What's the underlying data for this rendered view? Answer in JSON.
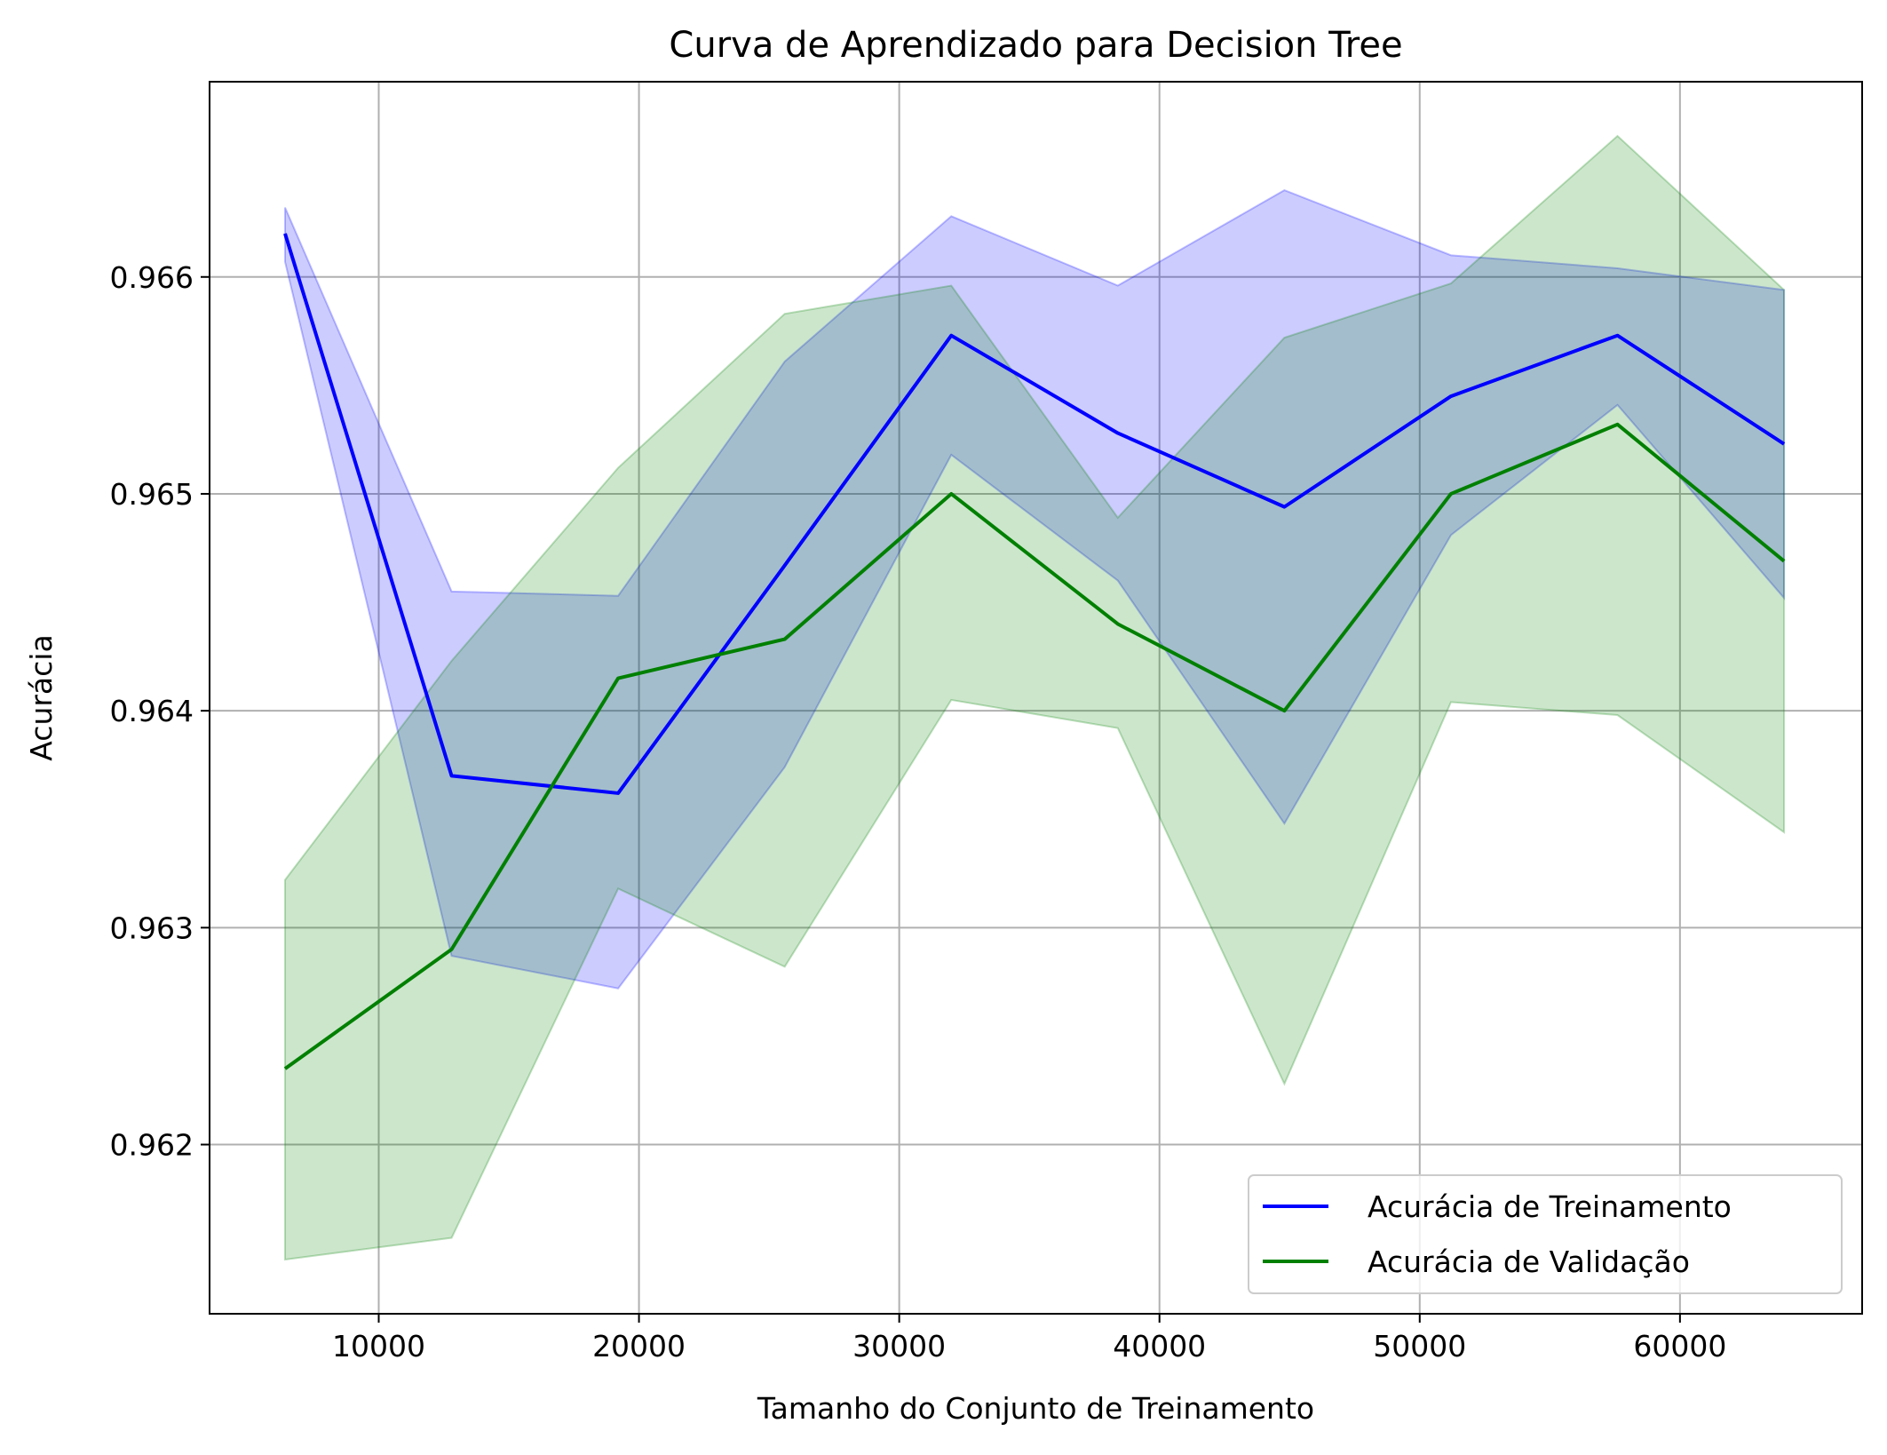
{
  "chart_data": {
    "type": "line",
    "title": "Curva de Aprendizado para Decision Tree",
    "xlabel": "Tamanho do Conjunto de Treinamento",
    "ylabel": "Acurácia",
    "xlim": [
      3500,
      67000
    ],
    "ylim": [
      0.96122,
      0.9669
    ],
    "xticks": [
      10000,
      20000,
      30000,
      40000,
      50000,
      60000
    ],
    "xtick_labels": [
      "10000",
      "20000",
      "30000",
      "40000",
      "50000",
      "60000"
    ],
    "yticks": [
      0.962,
      0.963,
      0.964,
      0.965,
      0.966
    ],
    "ytick_labels": [
      "0.962",
      "0.963",
      "0.964",
      "0.965",
      "0.966"
    ],
    "grid": true,
    "legend_position": "lower right",
    "x": [
      6400,
      12800,
      19200,
      25600,
      32000,
      38400,
      44800,
      51200,
      57600,
      64000
    ],
    "series": [
      {
        "name": "Acurácia de Treinamento",
        "color": "#0000ff",
        "band_color": "#0000ff",
        "values": [
          0.9662,
          0.9637,
          0.96362,
          0.96467,
          0.96573,
          0.96528,
          0.96494,
          0.96545,
          0.96573,
          0.96523
        ],
        "lower": [
          0.96607,
          0.96287,
          0.96272,
          0.96374,
          0.96518,
          0.9646,
          0.96348,
          0.96481,
          0.96541,
          0.96452
        ],
        "upper": [
          0.96632,
          0.96455,
          0.96453,
          0.96561,
          0.96628,
          0.96596,
          0.9664,
          0.9661,
          0.96604,
          0.96594
        ]
      },
      {
        "name": "Acurácia de Validação",
        "color": "#008000",
        "band_color": "#008000",
        "values": [
          0.96235,
          0.9629,
          0.96415,
          0.96433,
          0.965,
          0.9644,
          0.964,
          0.965,
          0.96532,
          0.96469
        ],
        "lower": [
          0.96147,
          0.96157,
          0.96318,
          0.96282,
          0.96405,
          0.96392,
          0.96228,
          0.96404,
          0.96398,
          0.96344
        ],
        "upper": [
          0.96322,
          0.96423,
          0.96512,
          0.96583,
          0.96596,
          0.96489,
          0.96572,
          0.96597,
          0.96665,
          0.96594
        ]
      }
    ]
  }
}
